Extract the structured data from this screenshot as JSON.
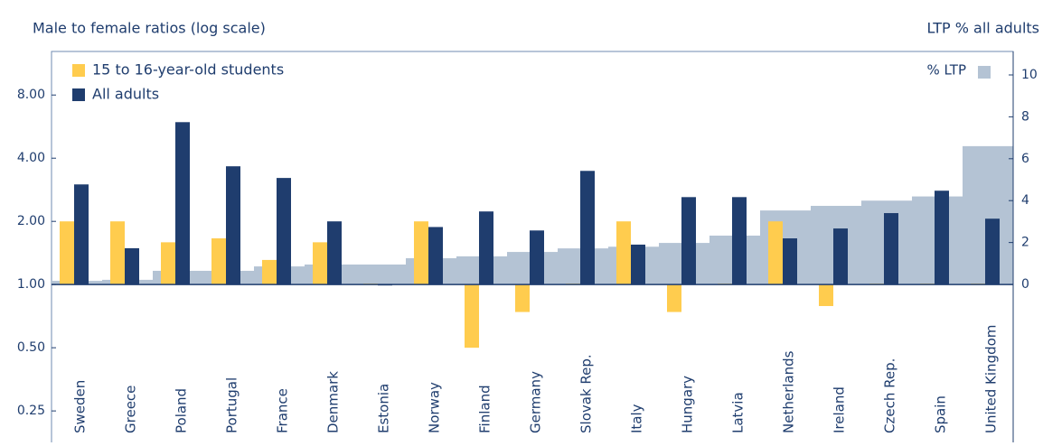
{
  "chart_data": {
    "type": "bar",
    "title": "Male to female ratios (log scale)",
    "y2_label": "LTP % all adults",
    "categories": [
      "Sweden",
      "Greece",
      "Poland",
      "Portugal",
      "France",
      "Denmark",
      "Estonia",
      "Norway",
      "Finland",
      "Germany",
      "Slovak Rep.",
      "Italy",
      "Hungary",
      "Latvia",
      "Netherlands",
      "Ireland",
      "Czech Rep.",
      "Spain",
      "United Kingdom"
    ],
    "series": [
      {
        "name": "% LTP",
        "color": "#b4c3d4",
        "axis": "y2",
        "values": [
          0.17,
          0.22,
          0.65,
          0.65,
          0.86,
          0.95,
          0.95,
          1.25,
          1.34,
          1.55,
          1.72,
          1.8,
          1.98,
          2.33,
          3.53,
          3.75,
          4.0,
          4.2,
          6.6
        ]
      },
      {
        "name": "15 to 16-year-old students",
        "color": "#ffcc4e",
        "values": [
          2.0,
          2.0,
          1.59,
          1.66,
          1.31,
          1.59,
          1.01,
          2.0,
          0.5,
          0.74,
          1.01,
          2.0,
          0.74,
          1.01,
          2.0,
          0.79,
          1.01,
          1.01,
          1.01
        ]
      },
      {
        "name": "All adults",
        "color": "#1f3d6e",
        "values": [
          3.0,
          1.49,
          5.94,
          3.66,
          3.22,
          2.0,
          0.99,
          1.88,
          2.23,
          1.81,
          3.48,
          1.55,
          2.61,
          2.61,
          1.66,
          1.85,
          2.19,
          2.8,
          2.06
        ]
      }
    ],
    "y_scale": "log",
    "ylim": [
      0.177,
      12.9
    ],
    "yticks": [
      {
        "value": 0.25,
        "label": "0.25"
      },
      {
        "value": 0.5,
        "label": "0.50"
      },
      {
        "value": 1,
        "label": "1.00"
      },
      {
        "value": 2,
        "label": "2.00"
      },
      {
        "value": 4,
        "label": "4.00"
      },
      {
        "value": 8,
        "label": "8.00"
      }
    ],
    "y2lim": [
      -7.54,
      11.12
    ],
    "y2ticks": [
      0,
      2,
      4,
      6,
      8,
      10
    ]
  }
}
